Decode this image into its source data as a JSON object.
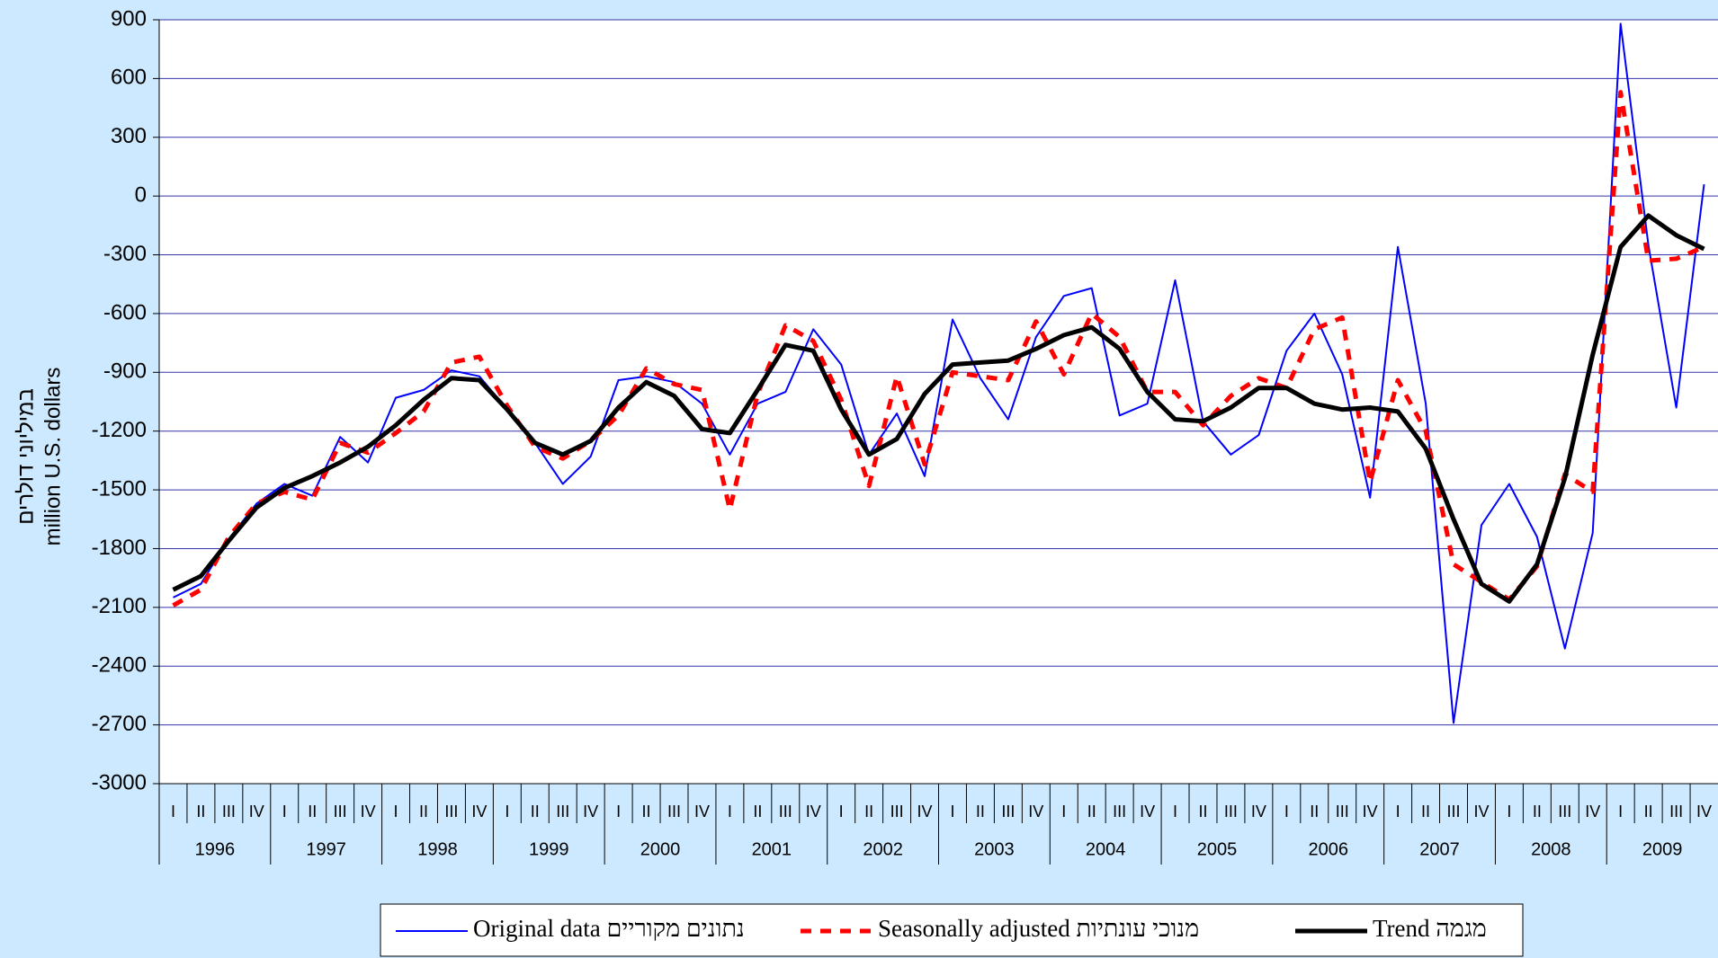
{
  "chart_data": {
    "type": "line",
    "y_axis_label": [
      "במיליוני דולרים",
      "million U.S. dollars"
    ],
    "categories": [
      "I",
      "II",
      "III",
      "IV",
      "I",
      "II",
      "III",
      "IV",
      "I",
      "II",
      "III",
      "IV",
      "I",
      "II",
      "III",
      "IV",
      "I",
      "II",
      "III",
      "IV",
      "I",
      "II",
      "III",
      "IV",
      "I",
      "II",
      "III",
      "IV",
      "I",
      "II",
      "III",
      "IV",
      "I",
      "II",
      "III",
      "IV",
      "I",
      "II",
      "III",
      "IV",
      "I",
      "II",
      "III",
      "IV",
      "I",
      "II",
      "III",
      "IV",
      "I",
      "II",
      "III",
      "IV",
      "I",
      "II",
      "III",
      "IV"
    ],
    "years": [
      "1996",
      "1997",
      "1998",
      "1999",
      "2000",
      "2001",
      "2002",
      "2003",
      "2004",
      "2005",
      "2006",
      "2007",
      "2008",
      "2009"
    ],
    "ylim": [
      -3000,
      900
    ],
    "yticks": [
      900,
      600,
      300,
      0,
      -300,
      -600,
      -900,
      -1200,
      -1500,
      -1800,
      -2100,
      -2400,
      -2700,
      -3000
    ],
    "grid": true,
    "series": [
      {
        "name": "Original data נתונים מקוריים",
        "color": "#0000ff",
        "style": "solid",
        "values": [
          -2050,
          -1980,
          -1750,
          -1570,
          -1470,
          -1530,
          -1230,
          -1360,
          -1030,
          -990,
          -890,
          -920,
          -1090,
          -1260,
          -1470,
          -1330,
          -940,
          -920,
          -950,
          -1060,
          -1320,
          -1060,
          -1000,
          -680,
          -860,
          -1320,
          -1110,
          -1430,
          -630,
          -930,
          -1140,
          -720,
          -510,
          -470,
          -1120,
          -1060,
          -430,
          -1150,
          -1320,
          -1220,
          -790,
          -600,
          -910,
          -1540,
          -260,
          -1060,
          -2690,
          -1680,
          -1470,
          -1740,
          -2310,
          -1720,
          880,
          -250,
          -1080,
          60
        ]
      },
      {
        "name": "Seasonally adjusted מנוכי עונתיות",
        "color": "#ff0000",
        "style": "dashed",
        "values": [
          -2090,
          -2010,
          -1740,
          -1570,
          -1510,
          -1550,
          -1260,
          -1310,
          -1210,
          -1100,
          -850,
          -820,
          -1070,
          -1280,
          -1340,
          -1250,
          -1120,
          -880,
          -960,
          -990,
          -1600,
          -1010,
          -660,
          -740,
          -1040,
          -1480,
          -920,
          -1370,
          -900,
          -920,
          -940,
          -640,
          -910,
          -600,
          -720,
          -1000,
          -1000,
          -1170,
          -1020,
          -930,
          -980,
          -680,
          -620,
          -1460,
          -940,
          -1200,
          -1880,
          -1970,
          -2060,
          -1890,
          -1420,
          -1510,
          530,
          -330,
          -320,
          -260
        ]
      },
      {
        "name": "Trend מגמה",
        "color": "#000000",
        "style": "thick",
        "values": [
          -2010,
          -1940,
          -1760,
          -1590,
          -1490,
          -1430,
          -1360,
          -1280,
          -1170,
          -1040,
          -930,
          -940,
          -1090,
          -1260,
          -1320,
          -1250,
          -1080,
          -950,
          -1020,
          -1190,
          -1210,
          -990,
          -760,
          -790,
          -1090,
          -1320,
          -1240,
          -1010,
          -860,
          -850,
          -840,
          -780,
          -710,
          -670,
          -780,
          -1000,
          -1140,
          -1150,
          -1080,
          -980,
          -980,
          -1060,
          -1090,
          -1080,
          -1100,
          -1290,
          -1650,
          -1980,
          -2070,
          -1880,
          -1440,
          -810,
          -260,
          -100,
          -200,
          -270
        ]
      }
    ]
  }
}
